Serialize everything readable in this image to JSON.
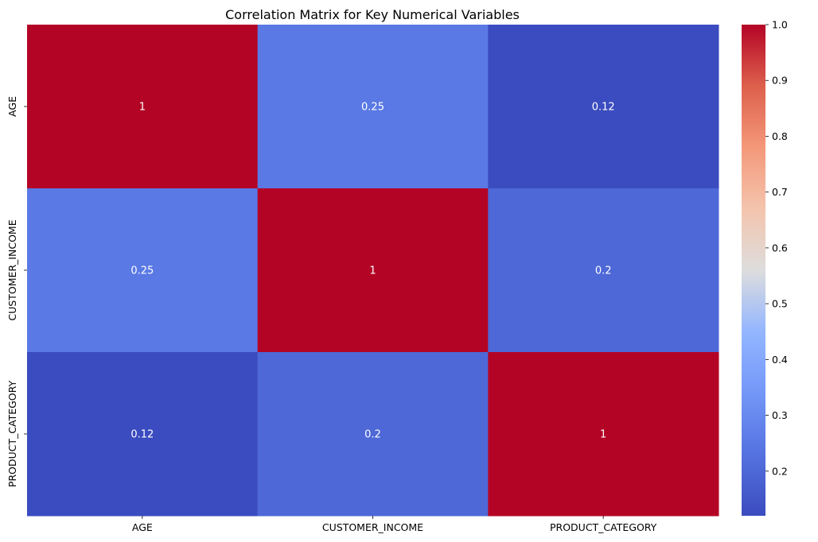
{
  "chart_data": {
    "type": "heatmap",
    "title": "Correlation Matrix for Key Numerical Variables",
    "x_categories": [
      "AGE",
      "CUSTOMER_INCOME",
      "PRODUCT_CATEGORY"
    ],
    "y_categories": [
      "AGE",
      "CUSTOMER_INCOME",
      "PRODUCT_CATEGORY"
    ],
    "values": [
      [
        1,
        0.25,
        0.12
      ],
      [
        0.25,
        1,
        0.2
      ],
      [
        0.12,
        0.2,
        1
      ]
    ],
    "cell_labels": [
      [
        "1",
        "0.25",
        "0.12"
      ],
      [
        "0.25",
        "1",
        "0.2"
      ],
      [
        "0.12",
        "0.2",
        "1"
      ]
    ],
    "colormap": "coolwarm",
    "colorbar": {
      "range": [
        0.12,
        1.0
      ],
      "ticks": [
        "0.2",
        "0.3",
        "0.4",
        "0.5",
        "0.6",
        "0.7",
        "0.8",
        "0.9",
        "1.0"
      ]
    },
    "annot_color": "#ffffff",
    "grid": false
  }
}
